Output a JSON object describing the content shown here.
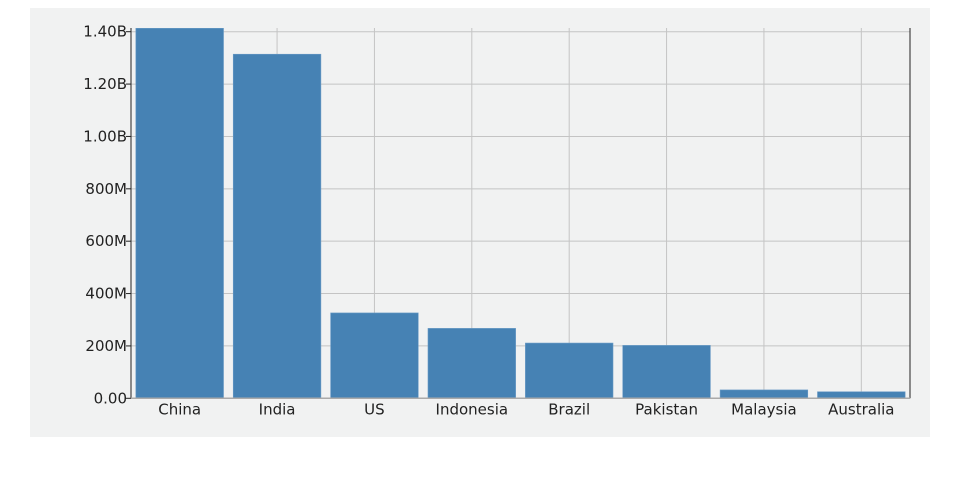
{
  "chart_data": {
    "type": "bar",
    "title": "",
    "xlabel": "",
    "ylabel": "",
    "categories": [
      "China",
      "India",
      "US",
      "Indonesia",
      "Brazil",
      "Pakistan",
      "Malaysia",
      "Australia"
    ],
    "values": [
      1413000000,
      1314000000,
      326000000,
      267000000,
      211000000,
      202000000,
      32000000,
      25000000
    ],
    "ylim": [
      0,
      1400000000
    ],
    "yticks": [
      0,
      200000000,
      400000000,
      600000000,
      800000000,
      1000000000,
      1200000000,
      1400000000
    ],
    "ytick_labels": [
      "0.00",
      "200M",
      "400M",
      "600M",
      "800M",
      "1.00B",
      "1.20B",
      "1.40B"
    ],
    "grid": true,
    "bar_color": "#4682b4",
    "background_color": "#f1f2f2"
  }
}
